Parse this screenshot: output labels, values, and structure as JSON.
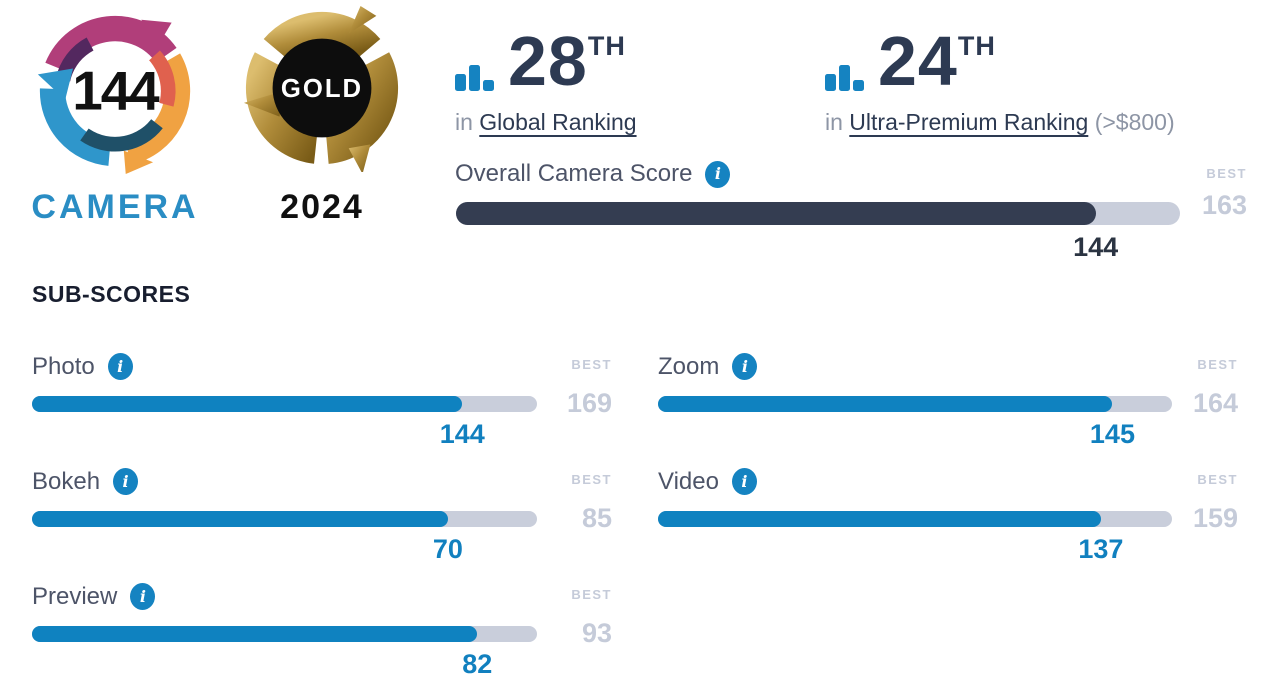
{
  "logo": {
    "score": "144",
    "label": "CAMERA"
  },
  "award": {
    "medal": "GOLD",
    "year": "2024"
  },
  "rankings": [
    {
      "rank": "28",
      "ord": "TH",
      "pre": "in",
      "link": "Global Ranking",
      "note": ""
    },
    {
      "rank": "24",
      "ord": "TH",
      "pre": "in",
      "link": "Ultra-Premium Ranking",
      "note": "(>$800)"
    }
  ],
  "overall": {
    "label": "Overall Camera Score",
    "best_label": "BEST",
    "value": 144,
    "best": 163
  },
  "subscores": {
    "heading": "SUB-SCORES",
    "best_label": "BEST",
    "items": [
      {
        "label": "Photo",
        "value": 144,
        "best": 169
      },
      {
        "label": "Bokeh",
        "value": 70,
        "best": 85
      },
      {
        "label": "Preview",
        "value": 82,
        "best": 93
      },
      {
        "label": "Zoom",
        "value": 145,
        "best": 164
      },
      {
        "label": "Video",
        "value": 137,
        "best": 159
      }
    ]
  },
  "colors": {
    "accent_blue": "#0f82c0",
    "navy": "#2d3a52",
    "overall_fill": "#343d51",
    "track_gray": "#c9cedb",
    "best_gray": "#c5cbd9",
    "label_gray": "#4d5468",
    "camera_blue": "#2a8dc4",
    "gold": "#b08c3a"
  },
  "chart_data": {
    "type": "bar",
    "title": "DXOMARK camera score bars",
    "categories": [
      "Overall Camera Score",
      "Photo",
      "Bokeh",
      "Preview",
      "Zoom",
      "Video"
    ],
    "series": [
      {
        "name": "score",
        "values": [
          144,
          144,
          70,
          82,
          145,
          137
        ]
      },
      {
        "name": "best",
        "values": [
          163,
          169,
          85,
          93,
          164,
          159
        ]
      }
    ],
    "note": "each bar drawn as score/best fraction of full track"
  }
}
